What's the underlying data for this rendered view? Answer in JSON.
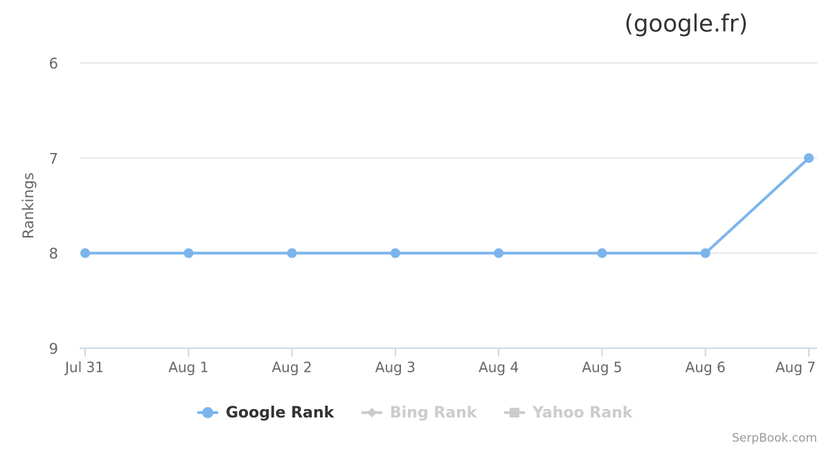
{
  "chart_data": {
    "type": "line",
    "title": "(google.fr)",
    "y_label": "Rankings",
    "credit": "SerpBook.com",
    "categories": [
      "Jul 31",
      "Aug 1",
      "Aug 2",
      "Aug 3",
      "Aug 4",
      "Aug 5",
      "Aug 6",
      "Aug 7"
    ],
    "series": [
      {
        "name": "Google Rank",
        "color": "#7cb5ec",
        "marker": "circle",
        "visible": true,
        "values": [
          8,
          8,
          8,
          8,
          8,
          8,
          8,
          7
        ]
      },
      {
        "name": "Bing Rank",
        "marker": "diamond",
        "visible": false
      },
      {
        "name": "Yahoo Rank",
        "marker": "square",
        "visible": false
      }
    ],
    "ylim": [
      6,
      9
    ],
    "yticks": [
      6,
      7,
      8,
      9
    ],
    "y_reversed": true,
    "grid": true,
    "legend": "bottom"
  }
}
